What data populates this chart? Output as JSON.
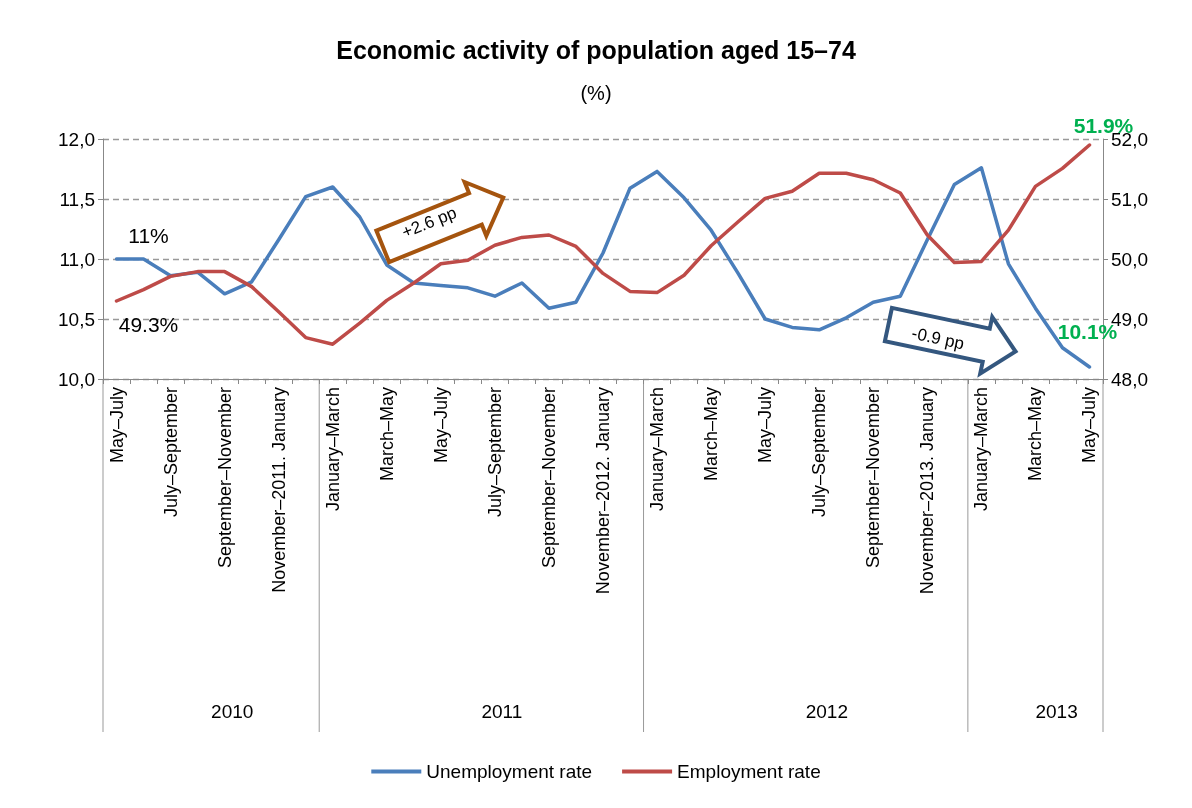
{
  "chart_data": {
    "type": "line",
    "title": "Economic activity of population aged 15–74",
    "subtitle": "(%)",
    "categories": [
      "May–July",
      null,
      "July–September",
      null,
      "September–November",
      null,
      "November–2011. January",
      null,
      "January–March",
      null,
      "March–May",
      null,
      "May–July",
      null,
      "July–September",
      null,
      "September–November",
      null,
      "November–2012. January",
      null,
      "January–March",
      null,
      "March–May",
      null,
      "May–July",
      null,
      "July–September",
      null,
      "September–November",
      null,
      "November–2013. January",
      null,
      "January–March",
      null,
      "March–May",
      null,
      "May–July"
    ],
    "series": [
      {
        "name": "Unemployment rate",
        "color": "#4a7ebb",
        "values": [
          11.0,
          11.0,
          10.86,
          10.89,
          10.71,
          10.81,
          11.16,
          11.52,
          11.6,
          11.35,
          10.95,
          10.8,
          10.78,
          10.76,
          10.69,
          10.8,
          10.59,
          10.64,
          11.05,
          11.59,
          11.73,
          11.51,
          11.24,
          10.88,
          10.5,
          10.43,
          10.41,
          10.51,
          10.64,
          10.69,
          11.16,
          11.62,
          11.76,
          10.96,
          10.59,
          10.26,
          10.1
        ],
        "value_labels": [
          "11%",
          null,
          null,
          null,
          null,
          null,
          null,
          null,
          null,
          null,
          null,
          null,
          null,
          null,
          null,
          null,
          null,
          null,
          null,
          null,
          null,
          null,
          null,
          null,
          null,
          null,
          null,
          null,
          null,
          null,
          null,
          null,
          null,
          null,
          null,
          null,
          "10.1%"
        ]
      },
      {
        "name": "Employment rate",
        "color": "#be4b48",
        "axis": "y2",
        "values": [
          49.3,
          49.49,
          49.71,
          49.79,
          49.79,
          49.54,
          49.12,
          48.69,
          48.58,
          48.93,
          49.31,
          49.6,
          49.92,
          49.98,
          50.23,
          50.36,
          50.4,
          50.21,
          49.76,
          49.46,
          49.44,
          49.73,
          50.22,
          50.62,
          51.01,
          51.13,
          51.43,
          51.43,
          51.32,
          51.1,
          50.4,
          49.94,
          49.96,
          50.48,
          51.21,
          51.51,
          51.9
        ],
        "value_labels": [
          "49.3%",
          null,
          null,
          null,
          null,
          null,
          null,
          null,
          null,
          null,
          null,
          null,
          null,
          null,
          null,
          null,
          null,
          null,
          null,
          null,
          null,
          null,
          null,
          null,
          null,
          null,
          null,
          null,
          null,
          null,
          null,
          null,
          null,
          null,
          null,
          null,
          "51.9%"
        ]
      }
    ],
    "ylim": [
      10,
      12
    ],
    "yticks": [
      {
        "value": 10,
        "label": "10,0"
      },
      {
        "value": 10.5,
        "label": "10,5"
      },
      {
        "value": 11,
        "label": "11,0"
      },
      {
        "value": 11.5,
        "label": "11,5"
      },
      {
        "value": 12,
        "label": "12,0"
      }
    ],
    "y2lim": [
      48,
      52
    ],
    "y2ticks": [
      {
        "value": 48,
        "label": "48,0"
      },
      {
        "value": 49,
        "label": "49,0"
      },
      {
        "value": 50,
        "label": "50,0"
      },
      {
        "value": 51,
        "label": "51,0"
      },
      {
        "value": 52,
        "label": "52,0"
      }
    ],
    "annotations": [
      "2010",
      "2011",
      "2012",
      "2013",
      "+2.6 pp",
      "-0.9 pp"
    ],
    "grid": "y",
    "legend": "bottom",
    "marker": "none",
    "line_style": "solid"
  }
}
